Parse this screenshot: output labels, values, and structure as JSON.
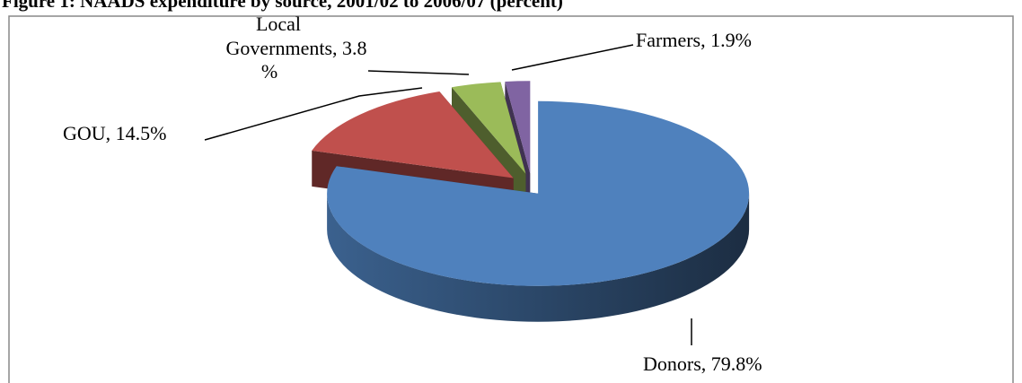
{
  "chart_data": {
    "type": "pie",
    "title": "Figure 1: NAADS expenditure by source, 2001/02 to 2006/07 (percent)",
    "values": [
      79.8,
      14.5,
      3.8,
      1.9
    ],
    "value_labels": [
      "Donors, 79.8%",
      "GOU, 14.5%",
      [
        "Local",
        "Governments, 3.8",
        "%"
      ],
      "Farmers, 1.9%"
    ],
    "colors": [
      "#4f81bd",
      "#c0504d",
      "#9bbb59",
      "#8064a2"
    ]
  }
}
